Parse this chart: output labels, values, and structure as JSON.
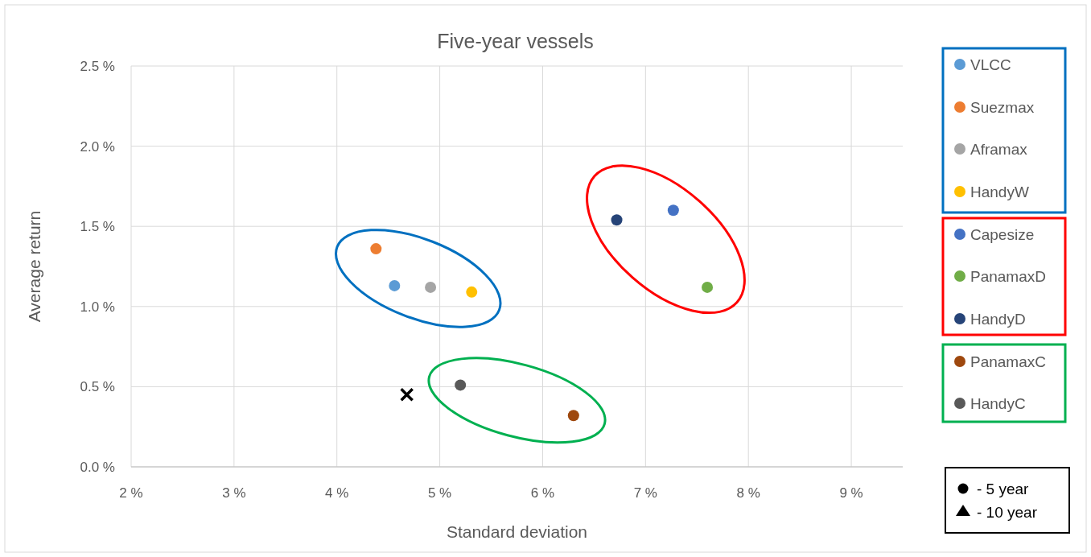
{
  "chart_data": {
    "type": "scatter",
    "title": "Five-year vessels",
    "xlabel": "Standard deviation",
    "ylabel": "Average return",
    "xlim": [
      2,
      9.5
    ],
    "ylim": [
      0,
      2.5
    ],
    "xticks": [
      {
        "value": 2,
        "label": "2 %"
      },
      {
        "value": 3,
        "label": "3 %"
      },
      {
        "value": 4,
        "label": "4 %"
      },
      {
        "value": 5,
        "label": "5 %"
      },
      {
        "value": 6,
        "label": "6 %"
      },
      {
        "value": 7,
        "label": "7 %"
      },
      {
        "value": 8,
        "label": "8 %"
      },
      {
        "value": 9,
        "label": "9 %"
      }
    ],
    "yticks": [
      {
        "value": 0,
        "label": "0.0 %"
      },
      {
        "value": 0.5,
        "label": "0.5 %"
      },
      {
        "value": 1,
        "label": "1.0 %"
      },
      {
        "value": 1.5,
        "label": "1.5 %"
      },
      {
        "value": 2,
        "label": "2.0 %"
      },
      {
        "value": 2.5,
        "label": "2.5 %"
      }
    ],
    "grid": true,
    "legend": "right",
    "marker": "circle",
    "annotations": [
      "- 5 year",
      "- 10 year"
    ],
    "series": [
      {
        "name": "VLCC",
        "color": "#5b9bd5",
        "x": [
          4.56
        ],
        "values": [
          1.13
        ]
      },
      {
        "name": "Suezmax",
        "color": "#ed7d31",
        "x": [
          4.38
        ],
        "values": [
          1.36
        ]
      },
      {
        "name": "Aframax",
        "color": "#a5a5a5",
        "x": [
          4.91
        ],
        "values": [
          1.12
        ]
      },
      {
        "name": "HandyW",
        "color": "#ffc000",
        "x": [
          5.31
        ],
        "values": [
          1.09
        ]
      },
      {
        "name": "Capesize",
        "color": "#4472c4",
        "x": [
          7.27
        ],
        "values": [
          1.6
        ]
      },
      {
        "name": "PanamaxD",
        "color": "#70ad47",
        "x": [
          7.6
        ],
        "values": [
          1.12
        ]
      },
      {
        "name": "HandyD",
        "color": "#264478",
        "x": [
          6.72
        ],
        "values": [
          1.54
        ]
      },
      {
        "name": "PanamaxC",
        "color": "#9e480e",
        "x": [
          6.3
        ],
        "values": [
          0.32
        ]
      },
      {
        "name": "HandyC",
        "color": "#595959",
        "x": [
          5.2
        ],
        "values": [
          0.51
        ]
      },
      {
        "color": "#000000",
        "marker": "cross",
        "x": [
          4.68
        ],
        "values": [
          0.45
        ]
      }
    ]
  }
}
